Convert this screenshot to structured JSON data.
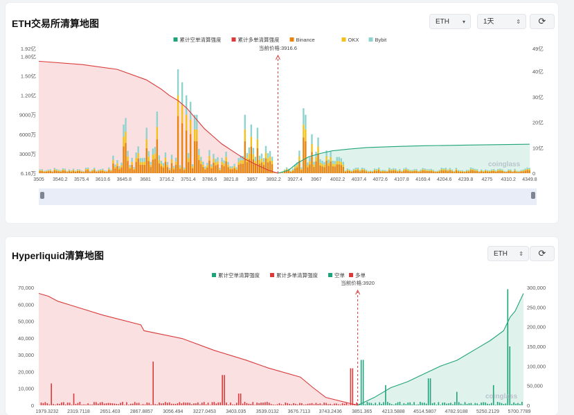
{
  "panels": [
    {
      "title": "ETH交易所清算地图",
      "controls": {
        "coin": "ETH",
        "interval": "1天",
        "refresh_icon": "refresh-icon",
        "coin_arrow": "chevron-down-icon",
        "interval_arrow": "chevron-up-down-icon"
      },
      "watermark": "coinglass"
    },
    {
      "title": "Hyperliquid清算地图",
      "controls": {
        "coin": "ETH",
        "refresh_icon": "refresh-icon",
        "coin_arrow": "chevron-up-down-icon"
      },
      "watermark": "coinglass"
    }
  ],
  "chart_data": [
    {
      "type": "bar",
      "legend": [
        "累计空单清算强度",
        "累计多单清算强度",
        "Binance",
        "OKX",
        "Bybit"
      ],
      "legend_position": "top-center",
      "colors": {
        "short_cum": "#1fa37a",
        "long_cum": "#d93a3a",
        "binance": "#e8830c",
        "okx": "#f2c21b",
        "bybit": "#8fd3cf",
        "current_price": "#d93a3a"
      },
      "current_price_label": "当前价格:3916.6",
      "current_price": 3916.6,
      "x_tick_labels": [
        "3505",
        "3540.2",
        "3575.4",
        "3610.6",
        "3645.8",
        "3681",
        "3716.2",
        "3751.4",
        "3786.6",
        "3821.8",
        "3857",
        "3892.2",
        "3927.4",
        "3967",
        "4002.2",
        "4037.4",
        "4072.6",
        "4107.8",
        "4169.4",
        "4204.6",
        "4239.8",
        "4275",
        "4310.2",
        "4349.8"
      ],
      "xlim": [
        3505,
        4349.8
      ],
      "y_left_tick_labels": [
        "6.16万",
        "3000万",
        "6000万",
        "9000万",
        "1.20亿",
        "1.50亿",
        "1.80亿",
        "1.92亿"
      ],
      "y_left_ticks": [
        61600,
        30000000,
        60000000,
        90000000,
        120000000,
        150000000,
        180000000,
        192000000
      ],
      "y_left_lim": [
        61600,
        192000000
      ],
      "y_right_tick_labels": [
        "0",
        "10亿",
        "20亿",
        "30亿",
        "40亿",
        "49亿"
      ],
      "y_right_ticks": [
        0,
        1000000000,
        2000000000,
        3000000000,
        4000000000,
        4900000000
      ],
      "y_right_lim": [
        0,
        4900000000
      ],
      "long_cum_curve": {
        "x": [
          3505,
          3580,
          3640,
          3690,
          3716,
          3730,
          3745,
          3760,
          3775,
          3790,
          3805,
          3820,
          3840,
          3860,
          3880,
          3900,
          3916.6
        ],
        "y": [
          4400000000,
          4270000000,
          4080000000,
          3670000000,
          3300000000,
          3050000000,
          2850000000,
          2550000000,
          2150000000,
          1750000000,
          1450000000,
          1150000000,
          850000000,
          550000000,
          330000000,
          120000000,
          0
        ]
      },
      "short_cum_curve": {
        "x": [
          3916.6,
          3935,
          3950,
          3970,
          3990,
          4010,
          4040,
          4070,
          4120,
          4170,
          4230,
          4290,
          4349.8
        ],
        "y": [
          0,
          120000000,
          400000000,
          650000000,
          780000000,
          880000000,
          950000000,
          1010000000,
          1050000000,
          1080000000,
          1100000000,
          1120000000,
          1140000000
        ]
      },
      "bars_sample": {
        "x": [
          3745,
          3752,
          3760,
          3767,
          3775,
          3710,
          3690,
          3650,
          3655,
          3860,
          3870,
          3880,
          3960,
          3965,
          3975,
          3985,
          4000,
          4020
        ],
        "total": [
          160000000,
          140000000,
          120000000,
          110000000,
          90000000,
          95000000,
          70000000,
          75000000,
          85000000,
          90000000,
          75000000,
          70000000,
          100000000,
          90000000,
          60000000,
          55000000,
          35000000,
          25000000
        ]
      }
    },
    {
      "type": "bar",
      "legend": [
        "累计空单清算强度",
        "累计多单清算强度",
        "空单",
        "多单"
      ],
      "legend_position": "top-center",
      "colors": {
        "short_cum": "#1fa37a",
        "long_cum": "#d93a3a",
        "short_bar": "#1fa37a",
        "long_bar": "#d93a3a",
        "current_price": "#d93a3a"
      },
      "current_price_label": "当前价格:3920",
      "current_price": 3920,
      "x_tick_labels": [
        "1979.3232",
        "2319.7118",
        "2651.403",
        "2867.8857",
        "3056.494",
        "3227.0453",
        "3403.035",
        "3539.0132",
        "3676.7113",
        "3743.2436",
        "3851.365",
        "4213.5888",
        "4514.5807",
        "4782.9188",
        "5250.2129",
        "5700.7789"
      ],
      "y_left_tick_labels": [
        "0",
        "10,000",
        "20,000",
        "30,000",
        "40,000",
        "50,000",
        "60,000",
        "70,000"
      ],
      "y_left_ticks": [
        0,
        10000,
        20000,
        30000,
        40000,
        50000,
        60000,
        70000
      ],
      "y_left_lim": [
        0,
        70000
      ],
      "y_right_tick_labels": [
        "0",
        "50,000",
        "100,000",
        "150,000",
        "200,000",
        "250,000",
        "300,000"
      ],
      "y_right_ticks": [
        0,
        50000,
        100000,
        150000,
        200000,
        250000,
        300000
      ],
      "y_right_lim": [
        0,
        300000
      ],
      "long_cum_curve": {
        "x": [
          0,
          0.03,
          0.06,
          0.1,
          0.2,
          0.32,
          0.33,
          0.45,
          0.55,
          0.65,
          0.72,
          0.82,
          0.86,
          0.9,
          1.0
        ],
        "y": [
          285000,
          278000,
          265000,
          255000,
          230000,
          205000,
          190000,
          170000,
          140000,
          115000,
          95000,
          72000,
          45000,
          20000,
          0
        ]
      },
      "short_cum_curve": {
        "x": [
          0,
          0.1,
          0.2,
          0.3,
          0.4,
          0.5,
          0.6,
          0.7,
          0.8,
          0.88,
          0.92,
          0.95,
          1.0
        ],
        "y": [
          0,
          20000,
          45000,
          60000,
          80000,
          100000,
          115000,
          140000,
          165000,
          190000,
          225000,
          240000,
          285000
        ]
      },
      "bars_sample": {
        "long": {
          "x": [
            0.04,
            0.11,
            0.36,
            0.58,
            0.63,
            0.98
          ],
          "y": [
            13000,
            7000,
            26000,
            18000,
            7000,
            22000
          ]
        },
        "short": {
          "x": [
            0.03,
            0.17,
            0.43,
            0.6,
            0.82,
            0.91,
            0.92
          ],
          "y": [
            27000,
            12000,
            16000,
            8000,
            12000,
            69000,
            35000
          ]
        }
      }
    }
  ]
}
